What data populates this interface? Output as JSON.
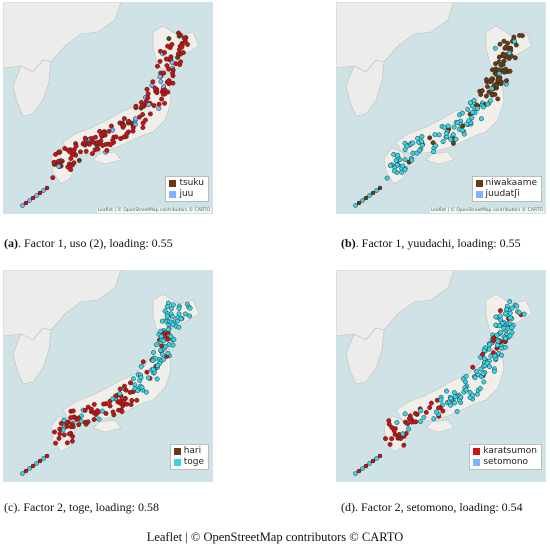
{
  "colors": {
    "sea": "#cfe3e6",
    "land_mainland": "#ececea",
    "land_japan": "#f1efe9",
    "dark_marker": "#6b3a12",
    "red_marker": "#cc1111",
    "cyan_marker": "#33d6e6",
    "blue_marker": "#7fb2ff",
    "marker_stroke": "#2a2a2a"
  },
  "panels": [
    {
      "id": "a",
      "caption_letter": "(a)",
      "caption_text": ". Factor 1, uso (2), loading: 0.55",
      "legend": [
        {
          "label": "tsuku",
          "color": "#6b3a12"
        },
        {
          "label": "juu",
          "color": "#7fb2ff"
        }
      ],
      "attribution": "Leaflet | © OpenStreetMap contributors © CARTO",
      "primary_color": "#cc1111",
      "secondary_color": "#7fb2ff",
      "pattern": "mostly_primary"
    },
    {
      "id": "b",
      "caption_letter": "(b)",
      "caption_text": ". Factor 1, yuudachi, loading: 0.55",
      "legend": [
        {
          "label": "niwakaame",
          "color": "#6b3a12"
        },
        {
          "label": "juudatʃi",
          "color": "#7fb2ff"
        }
      ],
      "attribution": "Leaflet | © OpenStreetMap contributors © CARTO",
      "primary_color": "#6b3a12",
      "secondary_color": "#33d6e6",
      "pattern": "north_primary_south_secondary"
    },
    {
      "id": "c",
      "caption_letter": "(c)",
      "caption_text": ". Factor 2, toge, loading: 0.58",
      "legend": [
        {
          "label": "hari",
          "color": "#6b3a12"
        },
        {
          "label": "toge",
          "color": "#33d6e6"
        }
      ],
      "attribution": "Leaflet | © OpenStreetMap contributors © CARTO",
      "primary_color": "#cc1111",
      "secondary_color": "#33d6e6",
      "pattern": "west_primary_east_secondary"
    },
    {
      "id": "d",
      "caption_letter": "(d)",
      "caption_text": ". Factor 2, setomono, loading: 0.54",
      "legend": [
        {
          "label": "karatsumon",
          "color": "#cc1111"
        },
        {
          "label": "setomono",
          "color": "#7fb2ff"
        }
      ],
      "attribution": "Leaflet | © OpenStreetMap contributors © CARTO",
      "primary_color": "#cc1111",
      "secondary_color": "#33d6e6",
      "pattern": "kyushu_primary_rest_secondary"
    }
  ],
  "footer": "Leaflet | © OpenStreetMap contributors © CARTO"
}
